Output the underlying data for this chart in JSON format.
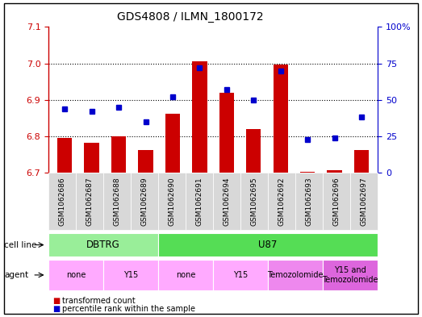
{
  "title": "GDS4808 / ILMN_1800172",
  "samples": [
    "GSM1062686",
    "GSM1062687",
    "GSM1062688",
    "GSM1062689",
    "GSM1062690",
    "GSM1062691",
    "GSM1062694",
    "GSM1062695",
    "GSM1062692",
    "GSM1062693",
    "GSM1062696",
    "GSM1062697"
  ],
  "bar_values": [
    6.795,
    6.783,
    6.8,
    6.762,
    6.862,
    7.005,
    6.92,
    6.82,
    6.997,
    6.703,
    6.706,
    6.763
  ],
  "bar_base": 6.7,
  "blue_values": [
    44,
    42,
    45,
    35,
    52,
    72,
    57,
    50,
    70,
    23,
    24,
    38
  ],
  "ylim_left": [
    6.7,
    7.1
  ],
  "ylim_right": [
    0,
    100
  ],
  "yticks_left": [
    6.7,
    6.8,
    6.9,
    7.0,
    7.1
  ],
  "yticks_right": [
    0,
    25,
    50,
    75,
    100
  ],
  "bar_color": "#cc0000",
  "blue_color": "#0000cc",
  "cell_line_groups": [
    {
      "label": "DBTRG",
      "start": 0,
      "end": 4,
      "color": "#99ee99"
    },
    {
      "label": "U87",
      "start": 4,
      "end": 12,
      "color": "#55dd55"
    }
  ],
  "agent_groups": [
    {
      "label": "none",
      "start": 0,
      "end": 2,
      "color": "#ffaaff"
    },
    {
      "label": "Y15",
      "start": 2,
      "end": 4,
      "color": "#ffaaff"
    },
    {
      "label": "none",
      "start": 4,
      "end": 6,
      "color": "#ffaaff"
    },
    {
      "label": "Y15",
      "start": 6,
      "end": 8,
      "color": "#ffaaff"
    },
    {
      "label": "Temozolomide",
      "start": 8,
      "end": 10,
      "color": "#ee88ee"
    },
    {
      "label": "Y15 and\nTemozolomide",
      "start": 10,
      "end": 12,
      "color": "#dd66dd"
    }
  ],
  "legend_red": "transformed count",
  "legend_blue": "percentile rank within the sample",
  "bar_color_red": "#cc0000",
  "blue_color_hex": "#0000cc",
  "bg_color": "#ffffff",
  "gray_box": "#d8d8d8",
  "tick_color_left": "#cc0000",
  "tick_color_right": "#0000cc"
}
